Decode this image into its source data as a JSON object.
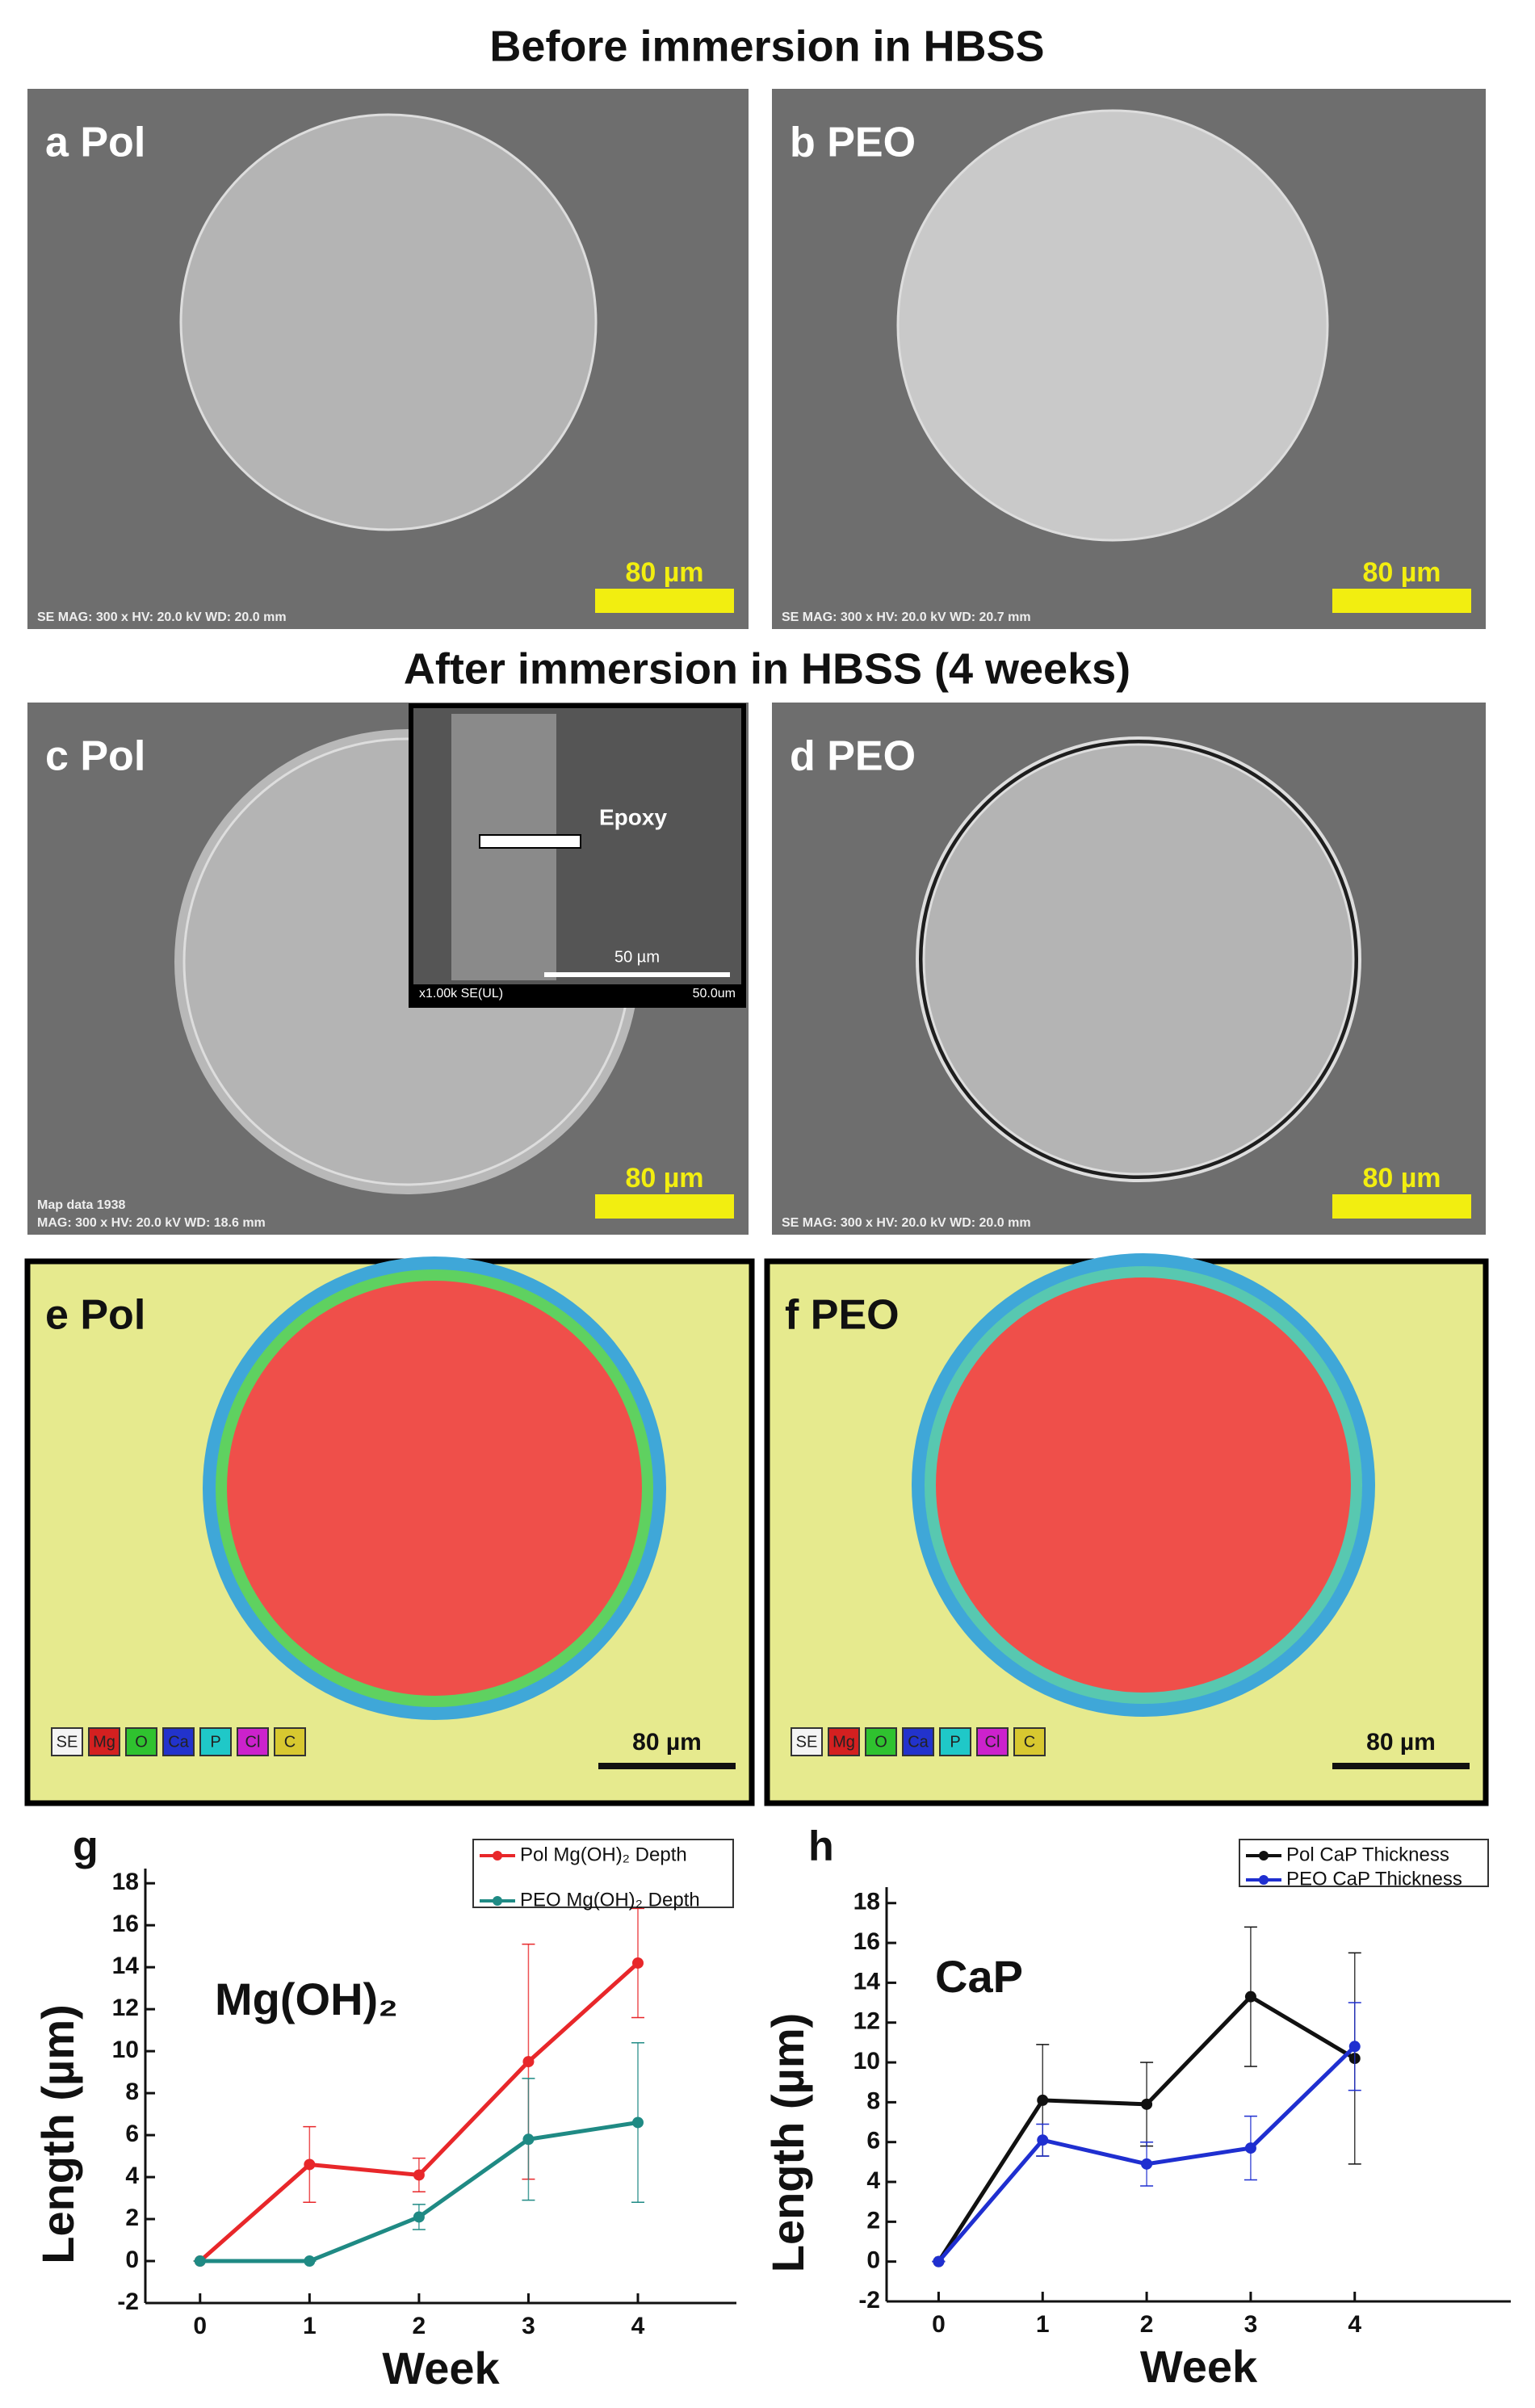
{
  "headings": [
    "Before immersion in HBSS",
    "After immersion in HBSS (4 weeks)"
  ],
  "panels": [
    {
      "label": "a Pol",
      "scale_bar": "80 µm",
      "info": [
        "SE  MAG: 300 x  HV: 20.0 kV  WD: 20.0 mm"
      ]
    },
    {
      "label": "b PEO",
      "scale_bar": "80 µm",
      "info": [
        "SE  MAG: 300 x  HV: 20.0 kV  WD: 20.7 mm"
      ]
    },
    {
      "label": "c Pol",
      "scale_bar": "80 µm",
      "info": [
        "Map data 1938",
        "MAG: 300 x  HV: 20.0 kV  WD: 18.6 mm"
      ]
    },
    {
      "label": "d PEO",
      "scale_bar": "80 µm",
      "info": [
        "SE  MAG: 300 x  HV: 20.0 kV  WD: 20.0 mm"
      ]
    },
    {
      "label": "e Pol",
      "scale_bar": "80 µm",
      "info": []
    },
    {
      "label": "f PEO",
      "scale_bar": "80 µm",
      "info": []
    }
  ],
  "inset": {
    "label": "Epoxy",
    "scale_bar": "50 µm",
    "info": "x1.00k SE(UL)",
    "scale": "50.0um"
  },
  "map_legend": [
    "SE",
    "Mg",
    "O",
    "Ca",
    "P",
    "Cl",
    "C"
  ],
  "chart_data": [
    {
      "type": "line",
      "panel_label": "g",
      "annotation": "Mg(OH)₂",
      "y_label": "Length (µm)",
      "x_label": "Week",
      "x": [
        0,
        1,
        2,
        3,
        4
      ],
      "xlim": [
        -0.5,
        4.9
      ],
      "xticks": [
        0,
        1,
        2,
        3,
        4
      ],
      "ylim": [
        -2,
        18.7
      ],
      "yticks": [
        -2,
        0,
        2,
        4,
        6,
        8,
        10,
        12,
        14,
        16,
        18
      ],
      "series": [
        {
          "name": "Pol   Mg(OH)₂ Depth",
          "color": "#e8272a",
          "values": [
            0,
            4.6,
            4.1,
            9.5,
            14.2
          ],
          "errors": [
            0,
            1.8,
            0.8,
            5.6,
            2.6
          ]
        },
        {
          "name": "PEO Mg(OH)₂ Depth",
          "color": "#1f8a84",
          "values": [
            0,
            0,
            2.1,
            5.8,
            6.6
          ],
          "errors": [
            0,
            0,
            0.6,
            2.9,
            3.8
          ]
        }
      ]
    },
    {
      "type": "line",
      "panel_label": "h",
      "annotation": "CaP",
      "y_label": "Length (µm)",
      "x_label": "Week",
      "x": [
        0,
        1,
        2,
        3,
        4
      ],
      "xlim": [
        -0.5,
        5.5
      ],
      "xticks": [
        0,
        1,
        2,
        3,
        4
      ],
      "ylim": [
        -2,
        18.8
      ],
      "yticks": [
        -2,
        0,
        2,
        4,
        6,
        8,
        10,
        12,
        14,
        16,
        18
      ],
      "series": [
        {
          "name": "Pol   CaP Thickness",
          "color": "#111111",
          "values": [
            0,
            8.1,
            7.9,
            13.3,
            10.2
          ],
          "errors": [
            0,
            2.8,
            2.1,
            3.5,
            5.3
          ]
        },
        {
          "name": "PEO CaP Thickness",
          "color": "#1f2fd0",
          "values": [
            0,
            6.1,
            4.9,
            5.7,
            10.8
          ],
          "errors": [
            0,
            0.8,
            1.1,
            1.6,
            2.2
          ]
        }
      ]
    }
  ]
}
